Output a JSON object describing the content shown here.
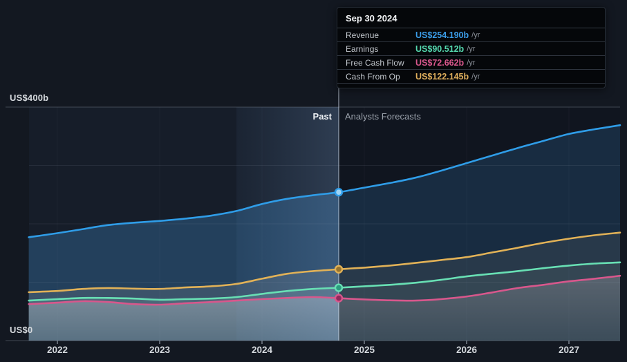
{
  "labels": {
    "y_top": "US$400b",
    "y_bottom": "US$0",
    "past": "Past",
    "forecast": "Analysts Forecasts"
  },
  "tooltip": {
    "date": "Sep 30 2024",
    "rows": [
      {
        "label": "Revenue",
        "value": "US$254.190b",
        "suffix": "/yr",
        "color": "#3b9ce8"
      },
      {
        "label": "Earnings",
        "value": "US$90.512b",
        "suffix": "/yr",
        "color": "#55d9af"
      },
      {
        "label": "Free Cash Flow",
        "value": "US$72.662b",
        "suffix": "/yr",
        "color": "#d8578c"
      },
      {
        "label": "Cash From Op",
        "value": "US$122.145b",
        "suffix": "/yr",
        "color": "#dfae5c"
      }
    ]
  },
  "chart_data": {
    "type": "area",
    "unit": "US$ billions / yr",
    "x_ticks": [
      2022,
      2023,
      2024,
      2025,
      2026,
      2027
    ],
    "x_range": [
      2021.72,
      2027.5
    ],
    "ylim": [
      0,
      400
    ],
    "y_gridlines": [
      0,
      100,
      200,
      300,
      400
    ],
    "divider_x": 2024.75,
    "divider_date": "Sep 30 2024",
    "highlight_band": [
      2023.75,
      2024.75
    ],
    "x": [
      2021.72,
      2022,
      2022.25,
      2022.5,
      2022.75,
      2023,
      2023.25,
      2023.5,
      2023.75,
      2024,
      2024.25,
      2024.5,
      2024.75,
      2025,
      2025.25,
      2025.5,
      2025.75,
      2026,
      2026.25,
      2026.5,
      2026.75,
      2027,
      2027.25,
      2027.5
    ],
    "series": [
      {
        "name": "Revenue",
        "color": "#2f9de8",
        "fill": "#23405c",
        "marker_fill": "#9fd4f5",
        "at_divider": 254.19,
        "values": [
          177,
          184,
          191,
          198,
          202,
          205,
          209,
          214,
          222,
          234,
          243,
          249,
          254.19,
          262,
          270,
          279,
          291,
          304,
          317,
          330,
          342,
          354,
          362,
          369
        ]
      },
      {
        "name": "Cash From Op",
        "color": "#e2b257",
        "fill": "rgba(222,216,200,0.13)",
        "marker_fill": "#97742e",
        "at_divider": 122.145,
        "values": [
          83,
          85,
          88.5,
          90,
          89,
          88.5,
          91,
          93,
          97,
          106,
          114.5,
          119,
          122.145,
          125,
          128.5,
          133,
          138,
          143,
          151,
          159,
          167.5,
          174.5,
          180.5,
          185
        ]
      },
      {
        "name": "Earnings",
        "color": "#68e0b4",
        "fill": "rgba(198,238,224,0.13)",
        "marker_fill": "#2c9c80",
        "at_divider": 90.512,
        "values": [
          68.5,
          71,
          73,
          73,
          72,
          70,
          71,
          72,
          74.5,
          80,
          85,
          88.5,
          90.512,
          93,
          95.5,
          99,
          104,
          110,
          114.5,
          119,
          124,
          128.5,
          132,
          134
        ]
      },
      {
        "name": "Free Cash Flow",
        "color": "#d8578c",
        "fill": "fcf-gradient",
        "marker_fill": "#8e2a5c",
        "at_divider": 72.662,
        "values": [
          62.5,
          65,
          67.5,
          66,
          62.5,
          61.5,
          64,
          66,
          68.5,
          71,
          73,
          74.5,
          72.662,
          70.5,
          69,
          68.5,
          71,
          75.5,
          82.5,
          90,
          95.5,
          101.5,
          106,
          111
        ]
      }
    ],
    "style": {
      "plot_bg": "#161d29",
      "forecast_overlay": "rgba(5,8,14,0.35)",
      "band_light_from": "rgba(120,170,230,0.05)",
      "band_light_to": "rgba(145,190,245,0.20)",
      "grid_strong": "rgba(165,175,190,0.32)",
      "grid_faint": "rgba(165,175,190,0.11)",
      "grid_vertical": "rgba(165,175,190,0.05)",
      "divider_line": "rgba(215,225,240,0.78)",
      "tick_color": "#79808c"
    }
  }
}
